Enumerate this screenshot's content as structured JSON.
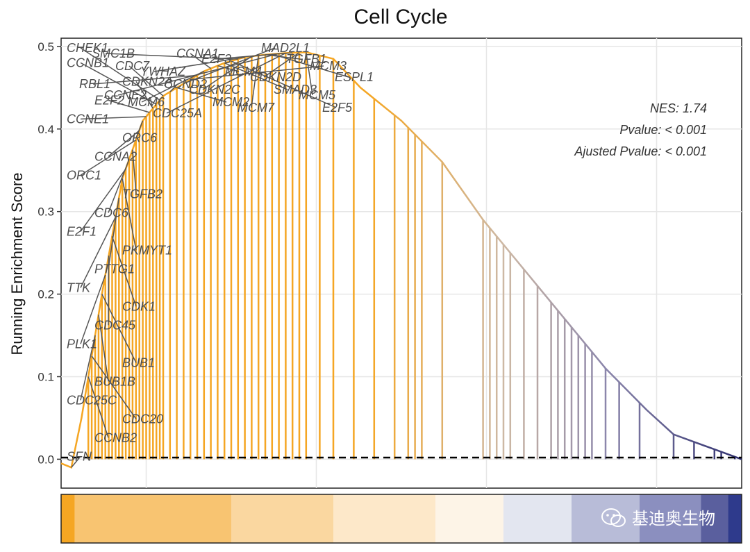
{
  "chart_data": {
    "type": "line",
    "title": "Cell Cycle",
    "ylabel": "Running Enrichment Score",
    "xlabel": "",
    "ylim": [
      -0.035,
      0.51
    ],
    "y_ticks": [
      0.0,
      0.1,
      0.2,
      0.3,
      0.4,
      0.5
    ],
    "y_tick_labels": [
      "0.0",
      "0.1",
      "0.2",
      "0.3",
      "0.4",
      "0.5"
    ],
    "grid": true,
    "colors": {
      "line_top": "#f5a623",
      "line_mid": "#b7aab0",
      "line_bottom": "#2e2f6e",
      "zero_line": "#000000",
      "arrow": "#555555",
      "heat_band": [
        "#f5a623",
        "#f8c471",
        "#fad7a0",
        "#fde8c9",
        "#fdf4e7",
        "#e3e6f0",
        "#b8bcd8",
        "#8b8fbf",
        "#5a5f9e",
        "#2e3a8c"
      ]
    },
    "annotations": [
      {
        "label": "NES: 1.74"
      },
      {
        "label": "Pvalue: < 0.001"
      },
      {
        "label": "Ajusted Pvalue: < 0.001"
      }
    ],
    "hits": [
      {
        "gene": "SFN",
        "x": 0.015,
        "es": -0.01
      },
      {
        "gene": "CCNB2",
        "x": 0.04,
        "es": 0.04
      },
      {
        "gene": "CDC20",
        "x": 0.045,
        "es": 0.06
      },
      {
        "gene": "CDC25C",
        "x": 0.05,
        "es": 0.09
      },
      {
        "gene": "BUB1B",
        "x": 0.055,
        "es": 0.13
      },
      {
        "gene": "BUB1",
        "x": 0.06,
        "es": 0.15
      },
      {
        "gene": "PLK1",
        "x": 0.065,
        "es": 0.17
      },
      {
        "gene": "CDC45",
        "x": 0.07,
        "es": 0.19
      },
      {
        "gene": "CDK1",
        "x": 0.075,
        "es": 0.21
      },
      {
        "gene": "TTK",
        "x": 0.08,
        "es": 0.23
      },
      {
        "gene": "PTTG1",
        "x": 0.085,
        "es": 0.25
      },
      {
        "gene": "PKMYT1",
        "x": 0.09,
        "es": 0.27
      },
      {
        "gene": "E2F1",
        "x": 0.095,
        "es": 0.29
      },
      {
        "gene": "CDC6",
        "x": 0.1,
        "es": 0.31
      },
      {
        "gene": "TGFB2",
        "x": 0.105,
        "es": 0.33
      },
      {
        "gene": "ORC1",
        "x": 0.11,
        "es": 0.35
      },
      {
        "gene": "CCNA2",
        "x": 0.115,
        "es": 0.37
      },
      {
        "gene": "ORC6",
        "x": 0.12,
        "es": 0.38
      },
      {
        "gene": "CCNE1",
        "x": 0.125,
        "es": 0.39
      },
      {
        "gene": "E2F2",
        "x": 0.13,
        "es": 0.4
      },
      {
        "gene": "CDKN2A",
        "x": 0.135,
        "es": 0.41
      },
      {
        "gene": "CCNB1",
        "x": 0.14,
        "es": 0.42
      },
      {
        "gene": "CHEK1",
        "x": 0.145,
        "es": 0.43
      },
      {
        "gene": "CDC7",
        "x": 0.15,
        "es": 0.435
      },
      {
        "gene": "CCND2",
        "x": 0.16,
        "es": 0.44
      },
      {
        "gene": "MCM2",
        "x": 0.17,
        "es": 0.445
      },
      {
        "gene": "MAD2L1",
        "x": 0.18,
        "es": 0.45
      },
      {
        "gene": "MCM3",
        "x": 0.19,
        "es": 0.455
      },
      {
        "gene": "RBL1",
        "x": 0.2,
        "es": 0.46
      },
      {
        "gene": "MCM6",
        "x": 0.21,
        "es": 0.465
      },
      {
        "gene": "CCNA1",
        "x": 0.22,
        "es": 0.47
      },
      {
        "gene": "MCM4",
        "x": 0.23,
        "es": 0.475
      },
      {
        "gene": "SMAD3",
        "x": 0.24,
        "es": 0.48
      },
      {
        "gene": "E2F5",
        "x": 0.25,
        "es": 0.482
      },
      {
        "gene": "SMC1B",
        "x": 0.26,
        "es": 0.484
      },
      {
        "gene": "YWHAZ",
        "x": 0.27,
        "es": 0.486
      },
      {
        "gene": "CDKN2C",
        "x": 0.28,
        "es": 0.488
      },
      {
        "gene": "MCM7",
        "x": 0.29,
        "es": 0.489
      },
      {
        "gene": "TGFB1",
        "x": 0.3,
        "es": 0.49
      },
      {
        "gene": "ESPL1",
        "x": 0.31,
        "es": 0.491
      },
      {
        "gene": "CCNE2",
        "x": 0.32,
        "es": 0.492
      },
      {
        "gene": "CDC25A",
        "x": 0.33,
        "es": 0.492
      },
      {
        "gene": "E2F3",
        "x": 0.34,
        "es": 0.493
      },
      {
        "gene": "CDKN2D",
        "x": 0.35,
        "es": 0.493
      },
      {
        "gene": "MCM5",
        "x": 0.36,
        "es": 0.493
      }
    ],
    "unlabeled_hits": [
      0.38,
      0.4,
      0.43,
      0.46,
      0.49,
      0.51,
      0.52,
      0.53,
      0.56,
      0.62,
      0.63,
      0.64,
      0.65,
      0.66,
      0.68,
      0.7,
      0.72,
      0.73,
      0.74,
      0.75,
      0.76,
      0.77,
      0.78,
      0.8,
      0.82,
      0.85,
      0.9,
      0.93,
      0.96,
      0.97,
      0.99
    ],
    "es_curve": {
      "x": [
        0.0,
        0.015,
        0.03,
        0.06,
        0.09,
        0.12,
        0.15,
        0.18,
        0.21,
        0.24,
        0.27,
        0.3,
        0.33,
        0.36,
        0.4,
        0.44,
        0.5,
        0.56,
        0.62,
        0.68,
        0.74,
        0.8,
        0.86,
        0.9,
        0.95,
        1.0
      ],
      "y": [
        -0.005,
        -0.01,
        0.05,
        0.2,
        0.34,
        0.41,
        0.44,
        0.455,
        0.47,
        0.48,
        0.487,
        0.49,
        0.492,
        0.493,
        0.485,
        0.45,
        0.41,
        0.36,
        0.29,
        0.23,
        0.17,
        0.11,
        0.06,
        0.03,
        0.015,
        0.0
      ]
    }
  },
  "watermark": {
    "text": "基迪奥生物",
    "icon": "wechat-icon"
  }
}
